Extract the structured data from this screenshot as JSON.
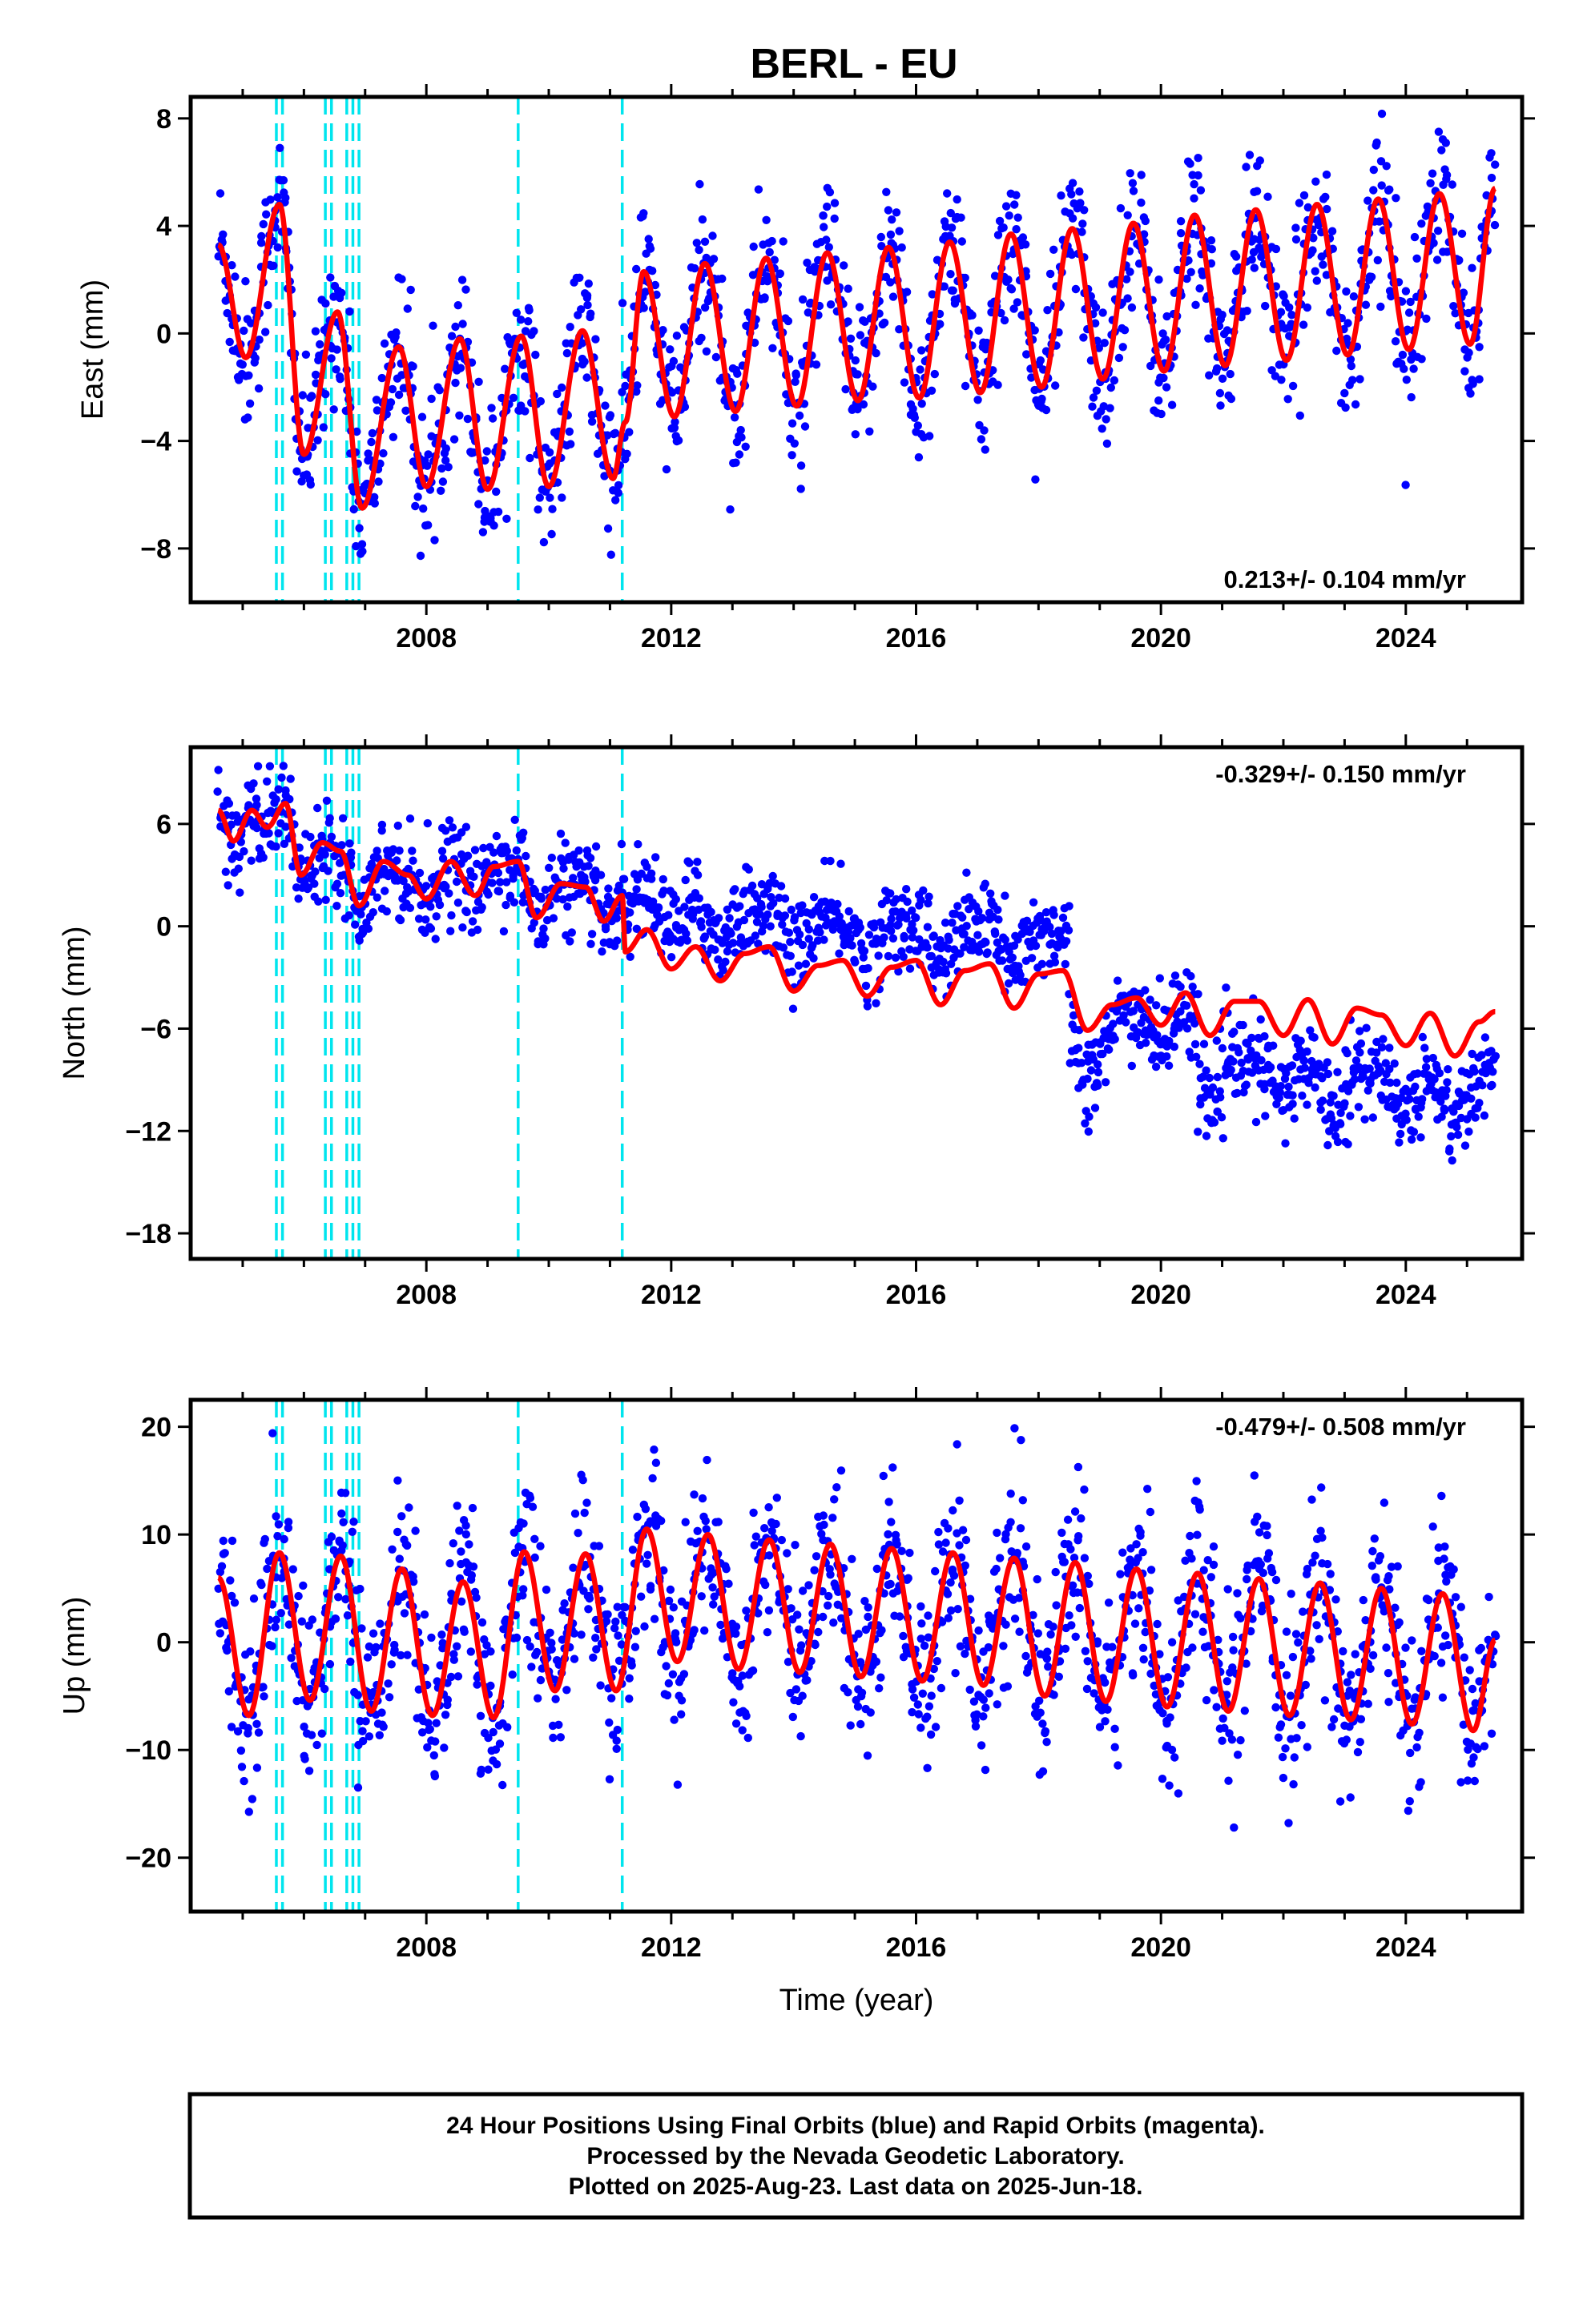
{
  "title": "BERL - EU",
  "footer": {
    "lines": [
      "24 Hour Positions Using Final Orbits (blue) and Rapid Orbits (magenta).",
      "Processed by the Nevada Geodetic Laboratory.",
      "Plotted on 2025-Aug-23. Last data on 2025-Jun-18."
    ]
  },
  "colors": {
    "points": "#0000ff",
    "model": "#ff0000",
    "offsets": "#00e5ee",
    "frame": "#000000"
  },
  "chart_data": [
    {
      "type": "scatter",
      "component": "east",
      "title": "BERL - EU",
      "xlabel": "",
      "ylabel": "East (mm)",
      "xlim": [
        2004.15,
        2025.9
      ],
      "ylim": [
        -10,
        8.8
      ],
      "x_ticks": [
        2008,
        2012,
        2016,
        2020,
        2024
      ],
      "y_ticks": [
        -8,
        -4,
        0,
        4,
        8
      ],
      "rate_label": "0.213+/- 0.104 mm/yr",
      "grid": false,
      "offset_epochs": [
        2005.55,
        2005.65,
        2006.35,
        2006.45,
        2006.7,
        2006.8,
        2006.9,
        2009.5,
        2011.2
      ],
      "data_start": 2004.6,
      "data_end": 2025.46,
      "model_anchors": [
        [
          2004.6,
          3.3
        ],
        [
          2005.05,
          -0.9
        ],
        [
          2005.6,
          4.8
        ],
        [
          2006.0,
          -4.5
        ],
        [
          2006.55,
          0.8
        ],
        [
          2006.95,
          -6.5
        ],
        [
          2007.55,
          -0.5
        ],
        [
          2008.0,
          -5.7
        ],
        [
          2008.55,
          -0.2
        ],
        [
          2009.0,
          -5.8
        ],
        [
          2009.55,
          -0.1
        ],
        [
          2010.0,
          -5.7
        ],
        [
          2010.55,
          0.1
        ],
        [
          2011.05,
          -5.4
        ],
        [
          2011.25,
          -3.3
        ],
        [
          2011.55,
          2.3
        ],
        [
          2012.05,
          -3.1
        ],
        [
          2012.55,
          2.6
        ],
        [
          2013.05,
          -2.9
        ],
        [
          2013.55,
          2.8
        ],
        [
          2014.05,
          -2.7
        ],
        [
          2014.55,
          3.0
        ],
        [
          2015.05,
          -2.5
        ],
        [
          2015.55,
          3.2
        ],
        [
          2016.05,
          -2.4
        ],
        [
          2016.55,
          3.4
        ],
        [
          2017.05,
          -2.2
        ],
        [
          2017.55,
          3.7
        ],
        [
          2018.05,
          -2.0
        ],
        [
          2018.55,
          3.9
        ],
        [
          2019.05,
          -1.7
        ],
        [
          2019.55,
          4.1
        ],
        [
          2020.05,
          -1.4
        ],
        [
          2020.55,
          4.4
        ],
        [
          2021.05,
          -1.2
        ],
        [
          2021.55,
          4.6
        ],
        [
          2022.05,
          -1.0
        ],
        [
          2022.55,
          4.8
        ],
        [
          2023.05,
          -0.8
        ],
        [
          2023.55,
          5.0
        ],
        [
          2024.05,
          -0.6
        ],
        [
          2024.55,
          5.2
        ],
        [
          2025.05,
          -0.4
        ],
        [
          2025.46,
          5.4
        ]
      ],
      "scatter_noise_mm": 1.4
    },
    {
      "type": "scatter",
      "component": "north",
      "title": "",
      "xlabel": "",
      "ylabel": "North (mm)",
      "xlim": [
        2004.15,
        2025.9
      ],
      "ylim": [
        -19.5,
        10.5
      ],
      "x_ticks": [
        2008,
        2012,
        2016,
        2020,
        2024
      ],
      "y_ticks": [
        -18,
        -12,
        -6,
        0,
        6
      ],
      "rate_label": "-0.329+/- 0.150 mm/yr",
      "grid": false,
      "offset_epochs": [
        2005.55,
        2005.65,
        2006.35,
        2006.45,
        2006.7,
        2006.8,
        2006.9,
        2009.5,
        2011.2
      ],
      "data_start": 2004.6,
      "data_end": 2025.46,
      "model_anchors": [
        [
          2004.6,
          6.8
        ],
        [
          2004.85,
          5.0
        ],
        [
          2005.15,
          6.8
        ],
        [
          2005.4,
          5.8
        ],
        [
          2005.7,
          7.2
        ],
        [
          2005.95,
          3.0
        ],
        [
          2006.3,
          4.9
        ],
        [
          2006.6,
          4.4
        ],
        [
          2006.9,
          1.2
        ],
        [
          2007.3,
          3.8
        ],
        [
          2007.7,
          3.0
        ],
        [
          2008.0,
          1.6
        ],
        [
          2008.4,
          3.8
        ],
        [
          2008.8,
          1.8
        ],
        [
          2009.1,
          3.5
        ],
        [
          2009.5,
          3.8
        ],
        [
          2009.8,
          0.5
        ],
        [
          2010.2,
          2.5
        ],
        [
          2010.6,
          2.3
        ],
        [
          2010.9,
          0.3
        ],
        [
          2011.2,
          1.8
        ],
        [
          2011.25,
          -1.5
        ],
        [
          2011.6,
          -0.2
        ],
        [
          2012.0,
          -2.5
        ],
        [
          2012.4,
          -1.2
        ],
        [
          2012.8,
          -3.2
        ],
        [
          2013.2,
          -1.6
        ],
        [
          2013.6,
          -1.2
        ],
        [
          2014.0,
          -3.8
        ],
        [
          2014.4,
          -2.3
        ],
        [
          2014.8,
          -2.0
        ],
        [
          2015.2,
          -4.1
        ],
        [
          2015.6,
          -2.4
        ],
        [
          2016.0,
          -2.0
        ],
        [
          2016.4,
          -4.6
        ],
        [
          2016.8,
          -2.6
        ],
        [
          2017.2,
          -2.2
        ],
        [
          2017.6,
          -4.8
        ],
        [
          2018.0,
          -2.8
        ],
        [
          2018.4,
          -2.6
        ],
        [
          2018.8,
          -6.1
        ],
        [
          2019.2,
          -4.6
        ],
        [
          2019.6,
          -4.2
        ],
        [
          2020.0,
          -5.8
        ],
        [
          2020.4,
          -3.9
        ],
        [
          2020.8,
          -6.4
        ],
        [
          2021.2,
          -4.4
        ],
        [
          2021.6,
          -4.4
        ],
        [
          2022.0,
          -6.4
        ],
        [
          2022.4,
          -4.3
        ],
        [
          2022.8,
          -6.9
        ],
        [
          2023.2,
          -4.8
        ],
        [
          2023.6,
          -5.2
        ],
        [
          2024.0,
          -7.0
        ],
        [
          2024.4,
          -5.1
        ],
        [
          2024.8,
          -7.6
        ],
        [
          2025.2,
          -5.6
        ],
        [
          2025.46,
          -5.0
        ]
      ],
      "residual_segments": [
        [
          2004.6,
          2011.2,
          0.0
        ],
        [
          2011.2,
          2018.5,
          2.4
        ],
        [
          2018.5,
          2019.2,
          -2.5
        ],
        [
          2019.2,
          2020.6,
          -0.8
        ],
        [
          2020.6,
          2025.5,
          -3.6
        ]
      ],
      "scatter_noise_mm": 1.3
    },
    {
      "type": "scatter",
      "component": "up",
      "title": "",
      "xlabel": "Time (year)",
      "ylabel": "Up (mm)",
      "xlim": [
        2004.15,
        2025.9
      ],
      "ylim": [
        -25,
        22.5
      ],
      "x_ticks": [
        2008,
        2012,
        2016,
        2020,
        2024
      ],
      "y_ticks": [
        -20,
        -10,
        0,
        10,
        20
      ],
      "rate_label": "-0.479+/- 0.508 mm/yr",
      "grid": false,
      "offset_epochs": [
        2005.55,
        2005.65,
        2006.35,
        2006.45,
        2006.7,
        2006.8,
        2006.9,
        2009.5,
        2011.2
      ],
      "data_start": 2004.6,
      "data_end": 2025.46,
      "model_anchors": [
        [
          2004.6,
          6.0
        ],
        [
          2005.1,
          -6.8
        ],
        [
          2005.6,
          8.3
        ],
        [
          2006.1,
          -5.4
        ],
        [
          2006.6,
          8.0
        ],
        [
          2007.1,
          -6.4
        ],
        [
          2007.6,
          6.8
        ],
        [
          2008.1,
          -6.8
        ],
        [
          2008.6,
          5.6
        ],
        [
          2009.1,
          -7.0
        ],
        [
          2009.6,
          8.4
        ],
        [
          2010.1,
          -4.5
        ],
        [
          2010.6,
          8.2
        ],
        [
          2011.1,
          -4.5
        ],
        [
          2011.6,
          10.5
        ],
        [
          2012.1,
          -1.8
        ],
        [
          2012.6,
          10.0
        ],
        [
          2013.1,
          -2.5
        ],
        [
          2013.6,
          9.5
        ],
        [
          2014.1,
          -2.8
        ],
        [
          2014.6,
          9.1
        ],
        [
          2015.1,
          -3.2
        ],
        [
          2015.6,
          8.7
        ],
        [
          2016.1,
          -3.6
        ],
        [
          2016.6,
          8.3
        ],
        [
          2017.1,
          -4.0
        ],
        [
          2017.6,
          7.8
        ],
        [
          2018.1,
          -5.0
        ],
        [
          2018.6,
          7.4
        ],
        [
          2019.1,
          -5.5
        ],
        [
          2019.6,
          6.8
        ],
        [
          2020.1,
          -6.0
        ],
        [
          2020.6,
          6.4
        ],
        [
          2021.1,
          -6.4
        ],
        [
          2021.6,
          5.9
        ],
        [
          2022.1,
          -6.8
        ],
        [
          2022.6,
          5.5
        ],
        [
          2023.1,
          -7.2
        ],
        [
          2023.6,
          5.0
        ],
        [
          2024.1,
          -7.6
        ],
        [
          2024.6,
          4.5
        ],
        [
          2025.1,
          -8.2
        ],
        [
          2025.46,
          0.2
        ]
      ],
      "scatter_noise_mm": 4.0
    }
  ]
}
